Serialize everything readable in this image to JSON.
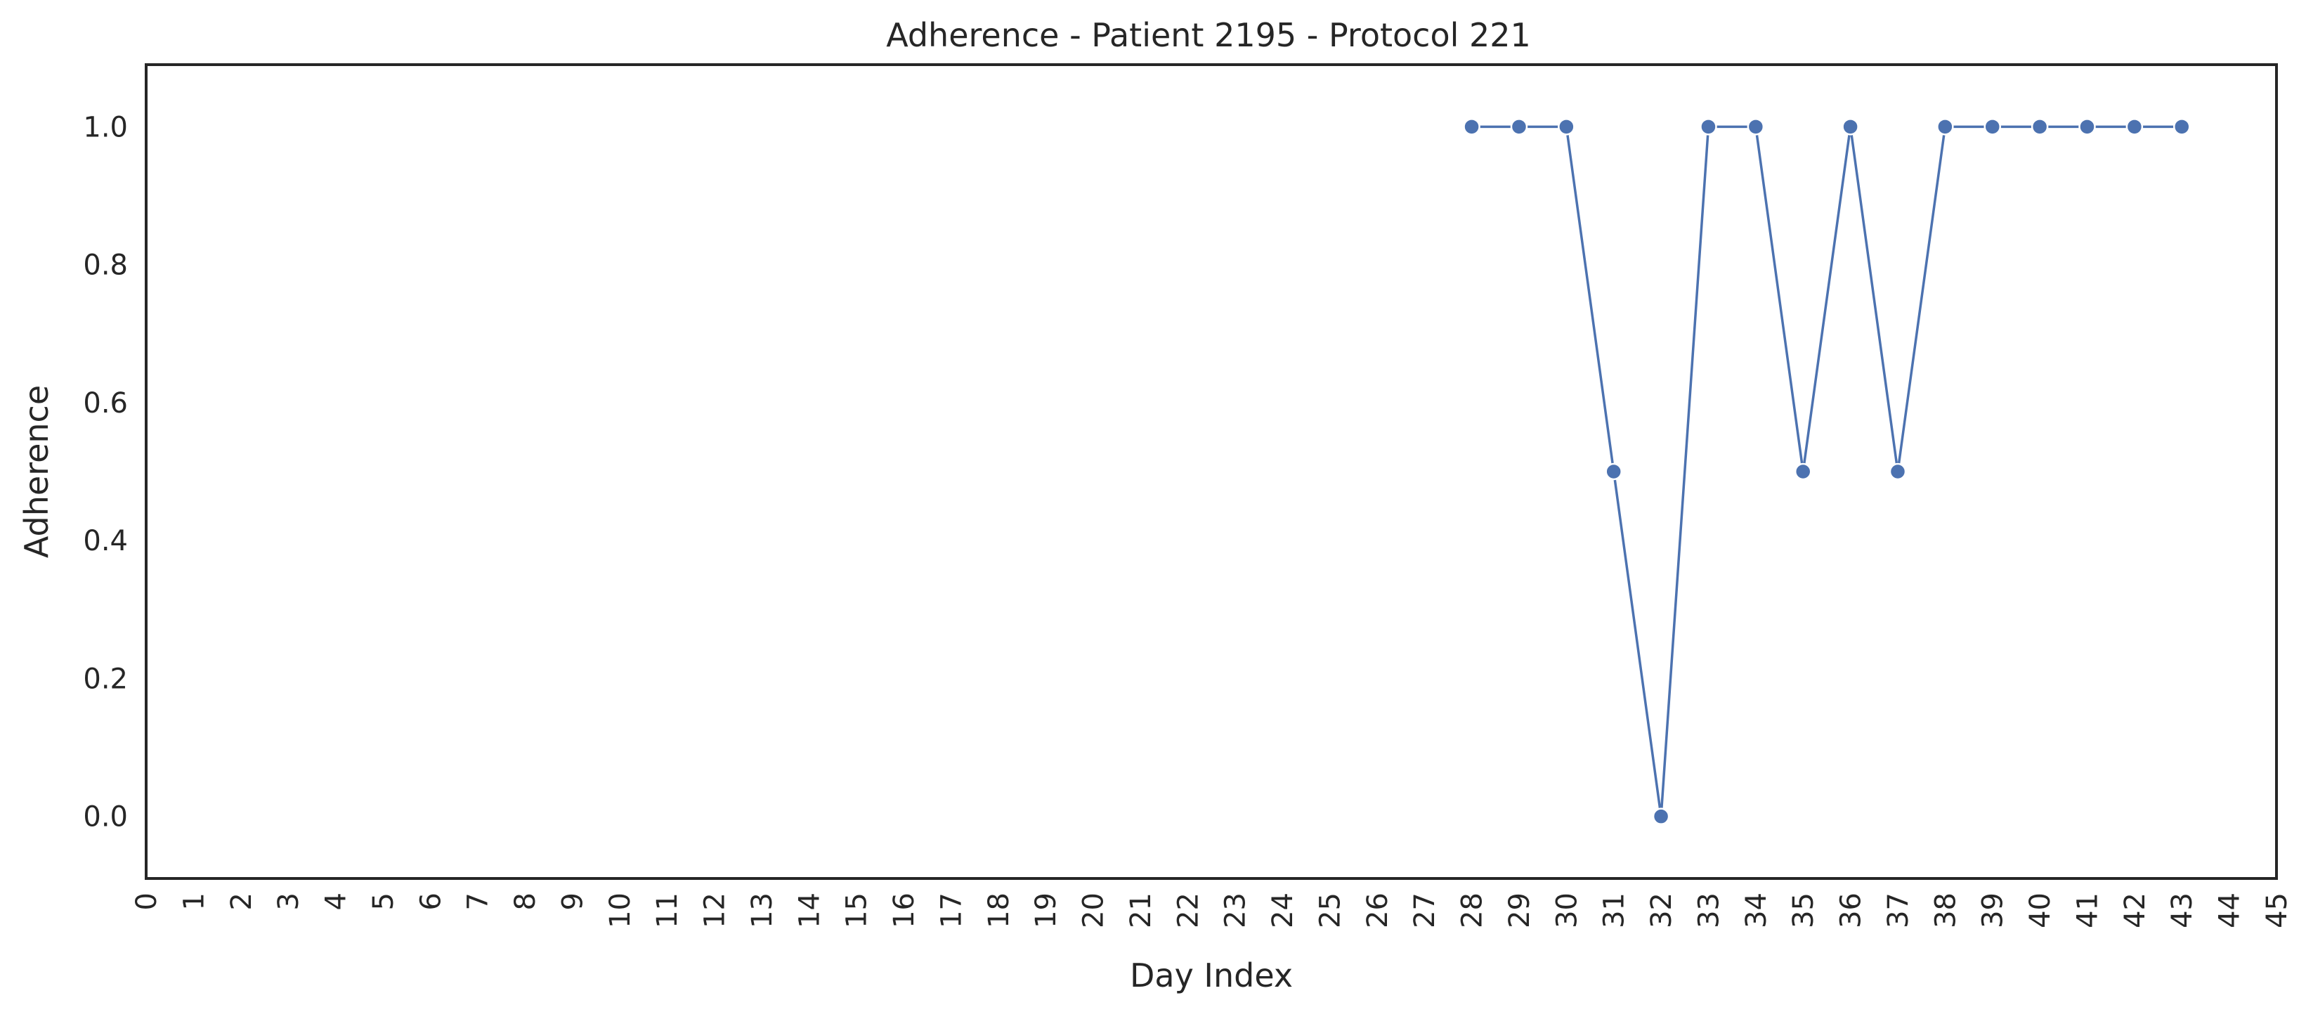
{
  "chart_data": {
    "type": "line",
    "title": "Adherence - Patient 2195 - Protocol 221",
    "xlabel": "Day Index",
    "ylabel": "Adherence",
    "xlim": [
      0,
      45
    ],
    "ylim": [
      -0.09,
      1.09
    ],
    "x_ticks": [
      0,
      1,
      2,
      3,
      4,
      5,
      6,
      7,
      8,
      9,
      10,
      11,
      12,
      13,
      14,
      15,
      16,
      17,
      18,
      19,
      20,
      21,
      22,
      23,
      24,
      25,
      26,
      27,
      28,
      29,
      30,
      31,
      32,
      33,
      34,
      35,
      36,
      37,
      38,
      39,
      40,
      41,
      42,
      43,
      44,
      45
    ],
    "y_ticks": [
      "0.0",
      "0.2",
      "0.4",
      "0.6",
      "0.8",
      "1.0"
    ],
    "y_tick_values": [
      0,
      0.2,
      0.4,
      0.6,
      0.8,
      1.0
    ],
    "grid": false,
    "series": [
      {
        "color": "#4c72b0",
        "x": [
          28,
          29,
          30,
          31,
          32,
          33,
          34,
          35,
          36,
          37,
          38,
          39,
          40,
          41,
          42,
          43
        ],
        "values": [
          1.0,
          1.0,
          1.0,
          0.5,
          0.0,
          1.0,
          1.0,
          0.5,
          1.0,
          0.5,
          1.0,
          1.0,
          1.0,
          1.0,
          1.0,
          1.0
        ]
      }
    ]
  }
}
